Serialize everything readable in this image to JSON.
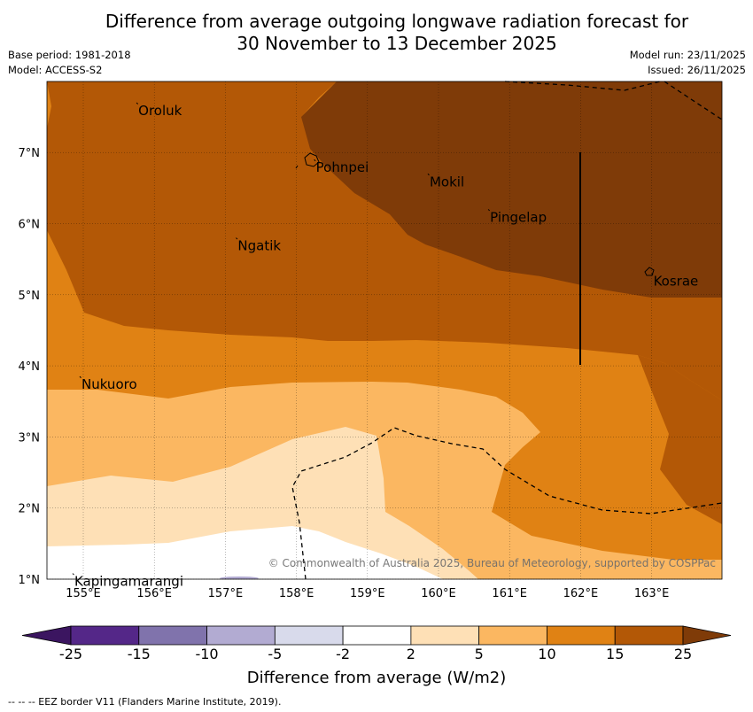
{
  "title": {
    "line1": "Difference from average outgoing longwave radiation forecast for",
    "line2": "30 November to 13 December 2025"
  },
  "meta": {
    "base_period": "Base period: 1981-2018",
    "model": "Model: ACCESS-S2",
    "model_run": "Model run: 23/11/2025",
    "issued": "Issued: 26/11/2025"
  },
  "map": {
    "lon_range": [
      154.5,
      164.0
    ],
    "lat_range": [
      1.0,
      8.0
    ],
    "lon_ticks": [
      "155°E",
      "156°E",
      "157°E",
      "158°E",
      "159°E",
      "160°E",
      "161°E",
      "162°E",
      "163°E"
    ],
    "lat_ticks": [
      "1°N",
      "2°N",
      "3°N",
      "4°N",
      "5°N",
      "6°N",
      "7°N"
    ],
    "places": [
      {
        "name": "Oroluk",
        "lon": 155.75,
        "lat": 7.7
      },
      {
        "name": "Pohnpei",
        "lon": 158.25,
        "lat": 6.9
      },
      {
        "name": "Mokil",
        "lon": 159.85,
        "lat": 6.7
      },
      {
        "name": "Pingelap",
        "lon": 160.7,
        "lat": 6.2
      },
      {
        "name": "Ngatik",
        "lon": 157.15,
        "lat": 5.8
      },
      {
        "name": "Kosrae",
        "lon": 163.0,
        "lat": 5.3
      },
      {
        "name": "Nukuoro",
        "lon": 154.95,
        "lat": 3.85
      },
      {
        "name": "Kapingamarangi",
        "lon": 154.85,
        "lat": 1.08
      }
    ],
    "copyright": "© Commonwealth of Australia 2025, Bureau of Meteorology, supported by COSPPac"
  },
  "colorbar": {
    "labels": [
      "-25",
      "-15",
      "-10",
      "-5",
      "-2",
      "2",
      "5",
      "10",
      "15",
      "25"
    ],
    "colors": [
      "#3b1560",
      "#542788",
      "#8073ac",
      "#b2abd2",
      "#d8daeb",
      "#ffffff",
      "#fee0b6",
      "#fbb761",
      "#e08214",
      "#b35806",
      "#7f3b08"
    ],
    "title": "Difference from average (W/m2)"
  },
  "footnote": "-- -- -- EEZ border V11 (Flanders Marine Institute, 2019)."
}
